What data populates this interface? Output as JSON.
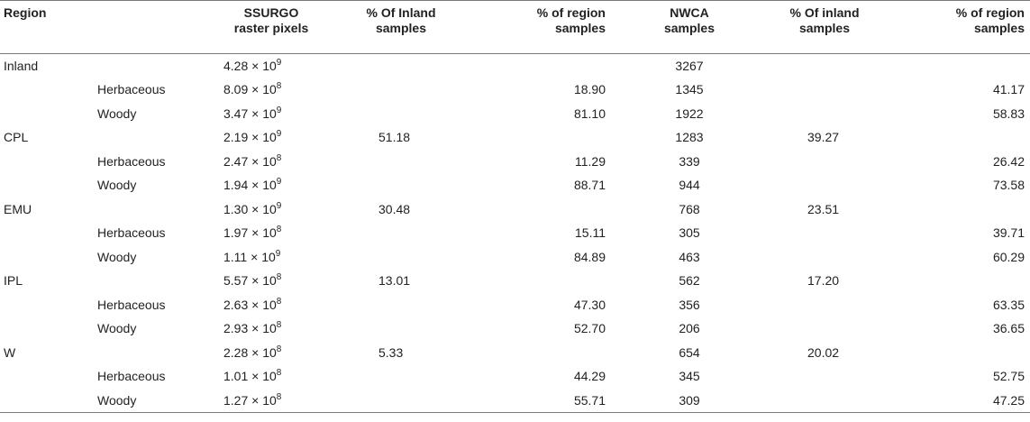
{
  "table": {
    "headers": [
      {
        "line1": "Region",
        "line2": ""
      },
      {
        "line1": "",
        "line2": ""
      },
      {
        "line1": "SSURGO",
        "line2": "raster pixels"
      },
      {
        "line1": "% Of Inland",
        "line2": "samples"
      },
      {
        "line1": "% of region",
        "line2": "samples"
      },
      {
        "line1": "NWCA",
        "line2": "samples"
      },
      {
        "line1": "% Of inland",
        "line2": "samples"
      },
      {
        "line1": "% of region",
        "line2": "samples"
      }
    ],
    "times": "×",
    "base": "10",
    "rows": [
      {
        "region": "Inland",
        "sub": "",
        "mant": "4.28",
        "exp": "9",
        "pct_inland": "",
        "pct_region": "",
        "nwca": "3267",
        "pct_inland2": "",
        "pct_region2": ""
      },
      {
        "region": "",
        "sub": "Herbaceous",
        "mant": "8.09",
        "exp": "8",
        "pct_inland": "",
        "pct_region": "18.90",
        "nwca": "1345",
        "pct_inland2": "",
        "pct_region2": "41.17"
      },
      {
        "region": "",
        "sub": "Woody",
        "mant": "3.47",
        "exp": "9",
        "pct_inland": "",
        "pct_region": "81.10",
        "nwca": "1922",
        "pct_inland2": "",
        "pct_region2": "58.83"
      },
      {
        "region": "CPL",
        "sub": "",
        "mant": "2.19",
        "exp": "9",
        "pct_inland": "51.18",
        "pct_region": "",
        "nwca": "1283",
        "pct_inland2": "39.27",
        "pct_region2": ""
      },
      {
        "region": "",
        "sub": "Herbaceous",
        "mant": "2.47",
        "exp": "8",
        "pct_inland": "",
        "pct_region": "11.29",
        "nwca": "339",
        "pct_inland2": "",
        "pct_region2": "26.42"
      },
      {
        "region": "",
        "sub": "Woody",
        "mant": "1.94",
        "exp": "9",
        "pct_inland": "",
        "pct_region": "88.71",
        "nwca": "944",
        "pct_inland2": "",
        "pct_region2": "73.58"
      },
      {
        "region": "EMU",
        "sub": "",
        "mant": "1.30",
        "exp": "9",
        "pct_inland": "30.48",
        "pct_region": "",
        "nwca": "768",
        "pct_inland2": "23.51",
        "pct_region2": ""
      },
      {
        "region": "",
        "sub": "Herbaceous",
        "mant": "1.97",
        "exp": "8",
        "pct_inland": "",
        "pct_region": "15.11",
        "nwca": "305",
        "pct_inland2": "",
        "pct_region2": "39.71"
      },
      {
        "region": "",
        "sub": "Woody",
        "mant": "1.11",
        "exp": "9",
        "pct_inland": "",
        "pct_region": "84.89",
        "nwca": "463",
        "pct_inland2": "",
        "pct_region2": "60.29"
      },
      {
        "region": "IPL",
        "sub": "",
        "mant": "5.57",
        "exp": "8",
        "pct_inland": "13.01",
        "pct_region": "",
        "nwca": "562",
        "pct_inland2": "17.20",
        "pct_region2": ""
      },
      {
        "region": "",
        "sub": "Herbaceous",
        "mant": "2.63",
        "exp": "8",
        "pct_inland": "",
        "pct_region": "47.30",
        "nwca": "356",
        "pct_inland2": "",
        "pct_region2": "63.35"
      },
      {
        "region": "",
        "sub": "Woody",
        "mant": "2.93",
        "exp": "8",
        "pct_inland": "",
        "pct_region": "52.70",
        "nwca": "206",
        "pct_inland2": "",
        "pct_region2": "36.65"
      },
      {
        "region": "W",
        "sub": "",
        "mant": "2.28",
        "exp": "8",
        "pct_inland": "5.33",
        "pct_region": "",
        "nwca": "654",
        "pct_inland2": "20.02",
        "pct_region2": ""
      },
      {
        "region": "",
        "sub": "Herbaceous",
        "mant": "1.01",
        "exp": "8",
        "pct_inland": "",
        "pct_region": "44.29",
        "nwca": "345",
        "pct_inland2": "",
        "pct_region2": "52.75"
      },
      {
        "region": "",
        "sub": "Woody",
        "mant": "1.27",
        "exp": "8",
        "pct_inland": "",
        "pct_region": "55.71",
        "nwca": "309",
        "pct_inland2": "",
        "pct_region2": "47.25"
      }
    ]
  }
}
